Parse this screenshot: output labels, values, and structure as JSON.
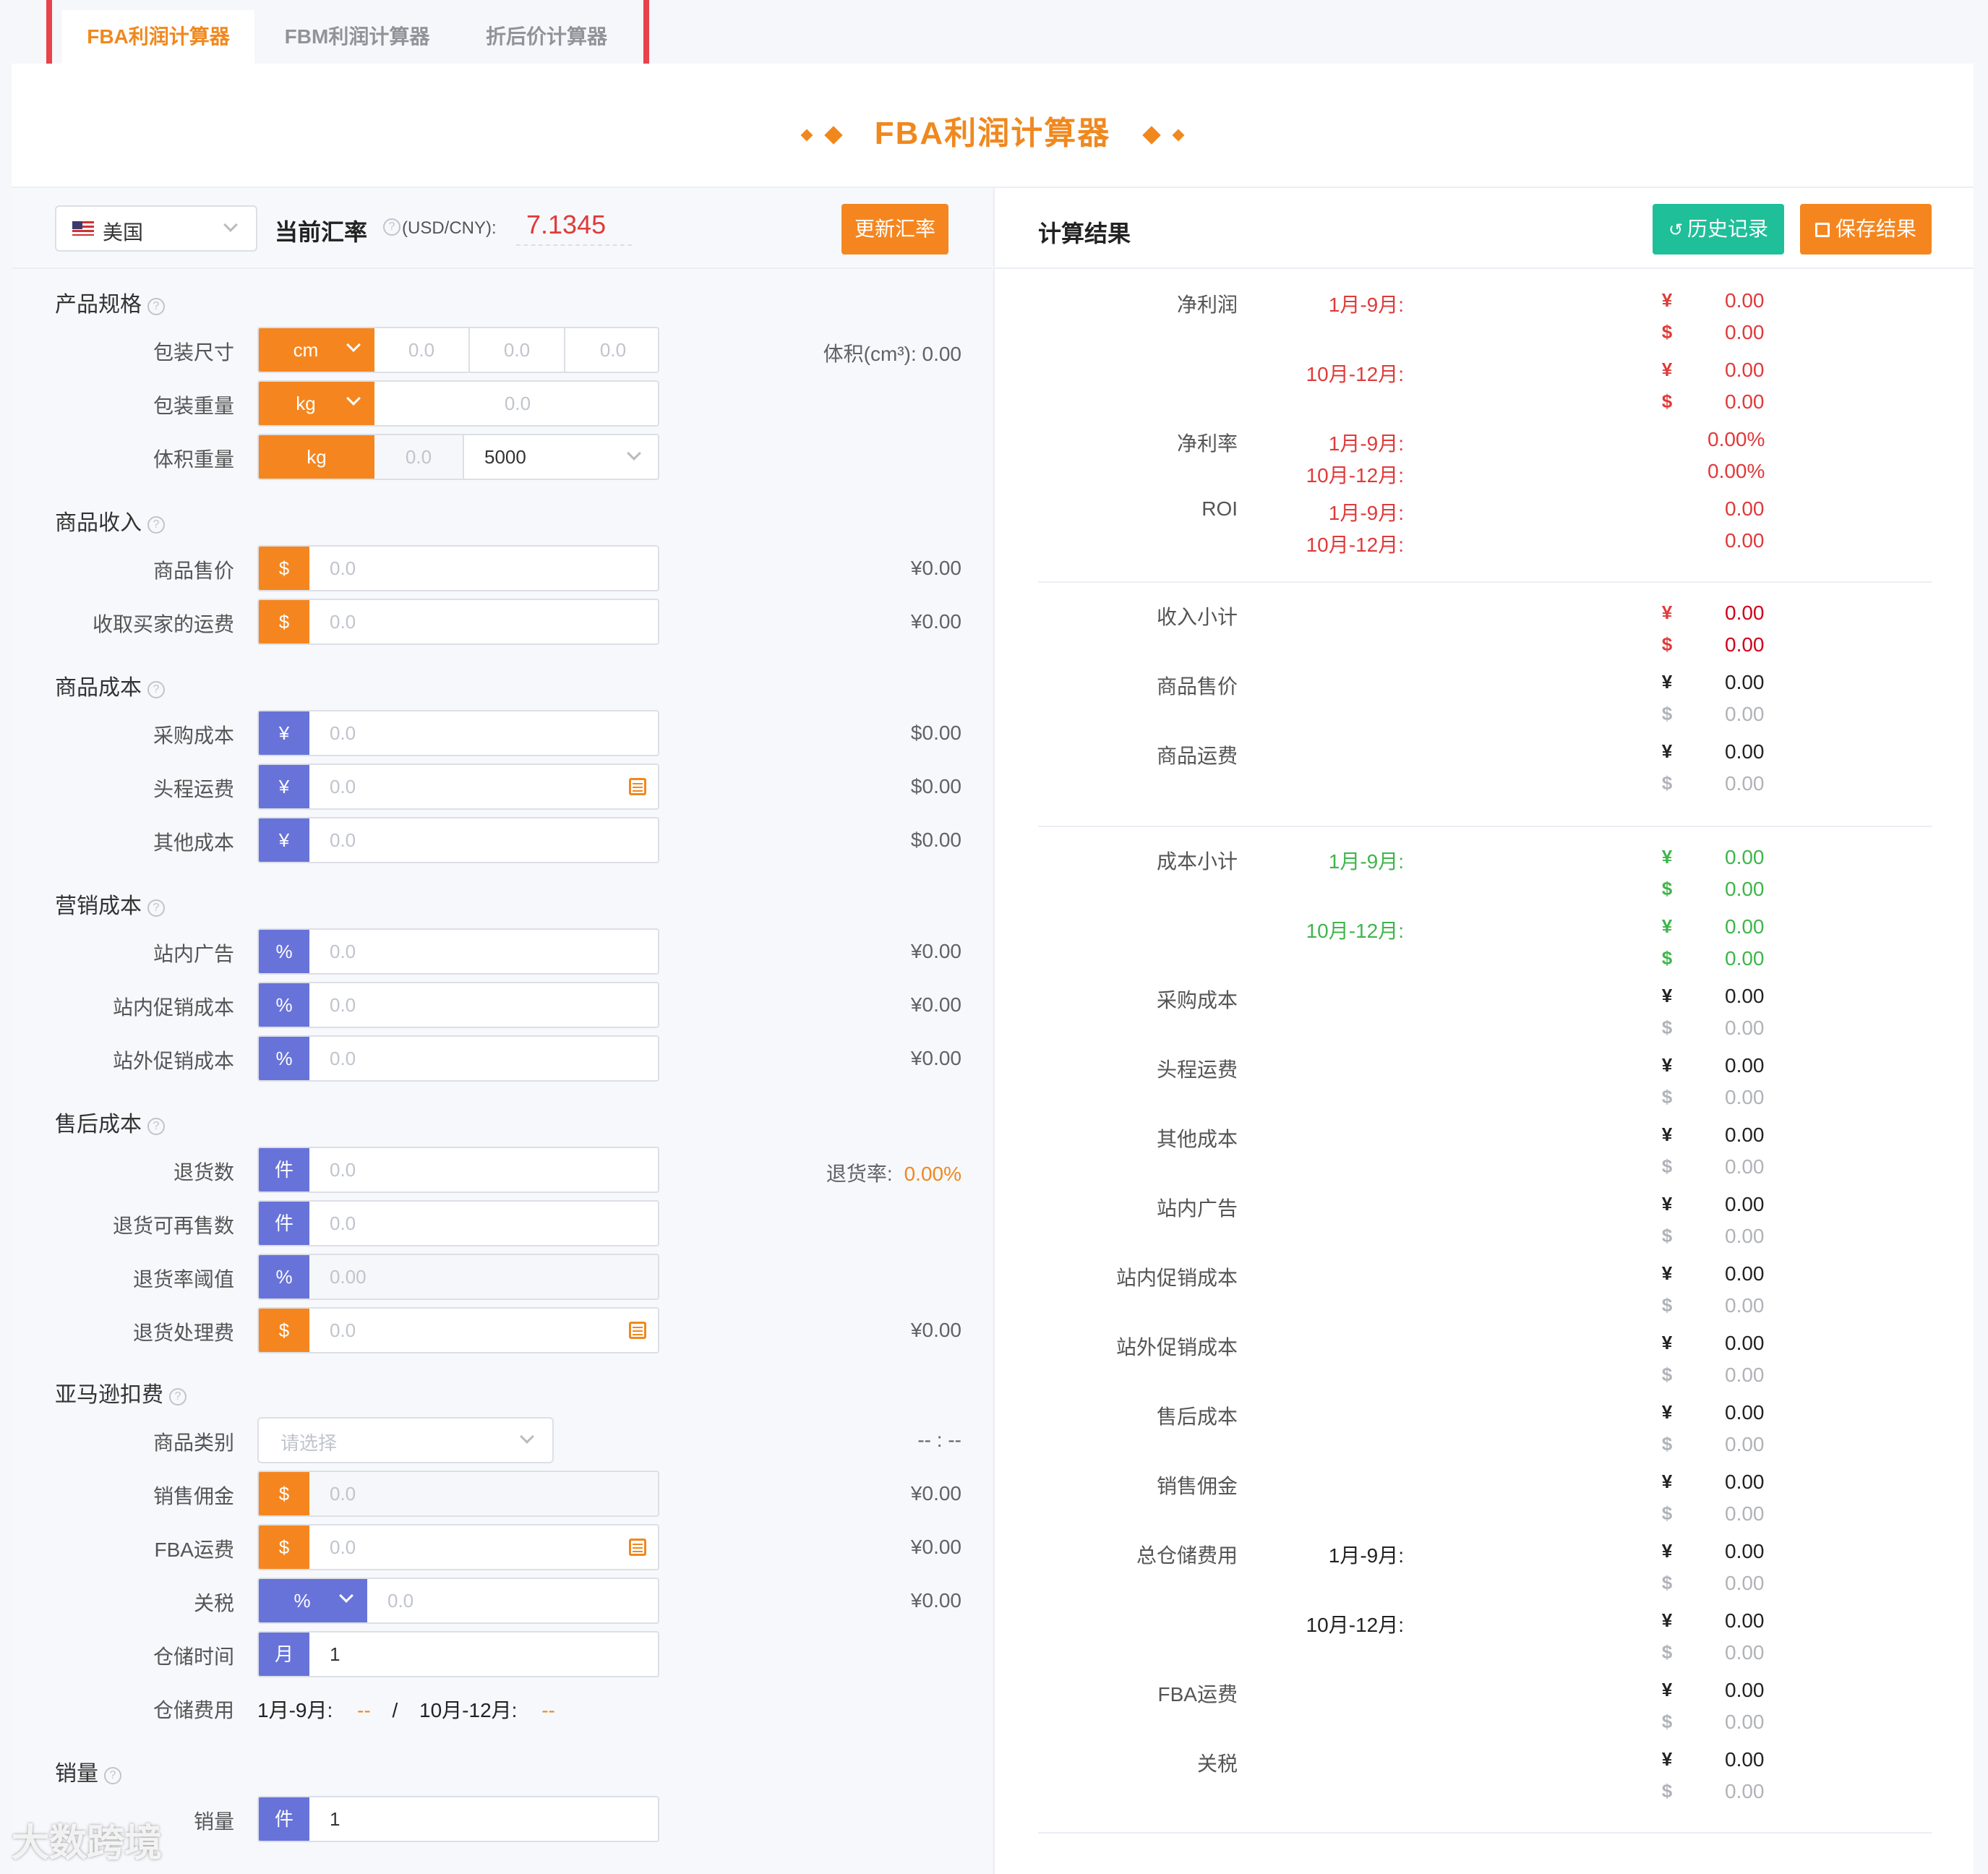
{
  "tabs": [
    "FBA利润计算器",
    "FBM利润计算器",
    "折后价计算器"
  ],
  "page_title": "FBA利润计算器",
  "colors": {
    "accent": "#f0881e",
    "blue_prefix": "#6873d9",
    "teal": "#1fbf9a",
    "red": "#e03a3a",
    "green": "#3fb54a",
    "highlight_box": "#e8424b"
  },
  "header": {
    "country": "美国",
    "rate_label": "当前汇率",
    "rate_unit": "(USD/CNY):",
    "rate_value": "7.1345",
    "update_button": "更新汇率"
  },
  "sections": {
    "spec": "产品规格",
    "income": "商品收入",
    "cost": "商品成本",
    "marketing": "营销成本",
    "aftersale": "售后成本",
    "amazon": "亚马逊扣费",
    "sales": "销量"
  },
  "spec": {
    "size_label": "包装尺寸",
    "size_unit": "cm",
    "size_values": [
      "0.0",
      "0.0",
      "0.0"
    ],
    "volume": "体积(cm³): 0.00",
    "weight_label": "包装重量",
    "weight_unit": "kg",
    "weight_value": "0.0",
    "volweight_label": "体积重量",
    "volweight_unit": "kg",
    "volweight_value": "0.0",
    "divisor": "5000"
  },
  "left_rows": {
    "price": {
      "label": "商品售价",
      "prefix": "$",
      "placeholder": "0.0",
      "value": "¥0.00"
    },
    "shipping_income": {
      "label": "收取买家的运费",
      "prefix": "$",
      "placeholder": "0.0",
      "value": "¥0.00"
    },
    "purchase": {
      "label": "采购成本",
      "prefix": "¥",
      "placeholder": "0.0",
      "value": "$0.00"
    },
    "first_leg": {
      "label": "头程运费",
      "prefix": "¥",
      "placeholder": "0.0",
      "value": "$0.00"
    },
    "other": {
      "label": "其他成本",
      "prefix": "¥",
      "placeholder": "0.0",
      "value": "$0.00"
    },
    "ads": {
      "label": "站内广告",
      "prefix": "%",
      "placeholder": "0.0",
      "value": "¥0.00"
    },
    "promo_in": {
      "label": "站内促销成本",
      "prefix": "%",
      "placeholder": "0.0",
      "value": "¥0.00"
    },
    "promo_out": {
      "label": "站外促销成本",
      "prefix": "%",
      "placeholder": "0.0",
      "value": "¥0.00"
    },
    "returns": {
      "label": "退货数",
      "prefix": "件",
      "placeholder": "0.0",
      "rate_label": "退货率:",
      "rate_value": "0.00%"
    },
    "resellable": {
      "label": "退货可再售数",
      "prefix": "件",
      "placeholder": "0.0"
    },
    "return_threshold": {
      "label": "退货率阈值",
      "prefix": "%",
      "placeholder": "0.00"
    },
    "return_fee": {
      "label": "退货处理费",
      "prefix": "$",
      "placeholder": "0.0",
      "value": "¥0.00"
    },
    "category": {
      "label": "商品类别",
      "placeholder": "请选择",
      "value": "-- : --"
    },
    "commission": {
      "label": "销售佣金",
      "prefix": "$",
      "placeholder": "0.0",
      "value": "¥0.00"
    },
    "fba_fee": {
      "label": "FBA运费",
      "prefix": "$",
      "placeholder": "0.0",
      "value": "¥0.00"
    },
    "tariff": {
      "label": "关税",
      "prefix": "%",
      "placeholder": "0.0",
      "value": "¥0.00"
    },
    "storage_time": {
      "label": "仓储时间",
      "prefix": "月",
      "value": "1"
    },
    "storage_fee": {
      "label": "仓储费用",
      "p1": "1月-9月:",
      "v1": "--",
      "sep": "/",
      "p2": "10月-12月:",
      "v2": "--"
    },
    "sales": {
      "label": "销量",
      "prefix": "件",
      "value": "1"
    }
  },
  "results": {
    "title": "计算结果",
    "history_button": "历史记录",
    "save_button": "保存结果",
    "net_profit": "净利润",
    "net_rate": "净利率",
    "roi": "ROI",
    "p1": "1月-9月:",
    "p2": "10月-12月:",
    "zero": "0.00",
    "zero_pct": "0.00%",
    "yen": "¥",
    "usd": "$",
    "income_total": "收入小计",
    "item_price": "商品售价",
    "item_shipping": "商品运费",
    "cost_total": "成本小计",
    "cost_items": [
      "采购成本",
      "头程运费",
      "其他成本",
      "站内广告",
      "站内促销成本",
      "站外促销成本",
      "售后成本",
      "销售佣金"
    ],
    "storage_total": "总仓储费用",
    "fba": "FBA运费",
    "tariff": "关税"
  },
  "watermark": "大数跨境"
}
